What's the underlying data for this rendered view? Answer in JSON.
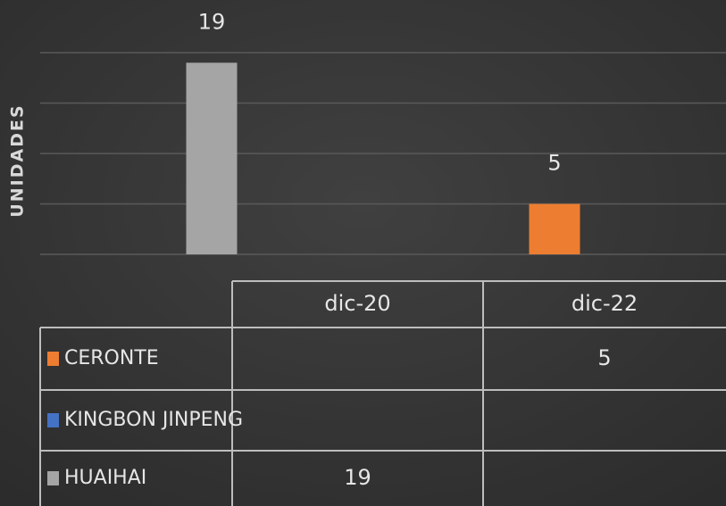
{
  "chart_data": {
    "type": "bar",
    "y_label": "UNIDADES",
    "categories": [
      "dic-20",
      "dic-22"
    ],
    "series": [
      {
        "name": "CERONTE",
        "color": "#ed7d31",
        "values": [
          null,
          5
        ]
      },
      {
        "name": "KINGBON JINPENG",
        "color": "#4472c4",
        "values": [
          null,
          null
        ]
      },
      {
        "name": "HUAIHAI",
        "color": "#a5a5a5",
        "values": [
          19,
          null
        ]
      }
    ],
    "ylim": [
      0,
      20
    ],
    "yticks": [
      0,
      5,
      10,
      15,
      20
    ],
    "grid": true,
    "data_table": true
  }
}
